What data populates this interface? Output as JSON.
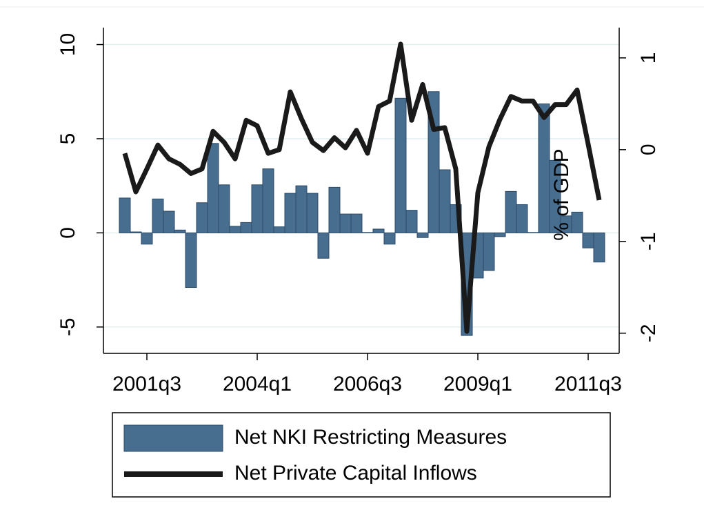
{
  "chart_data": {
    "type": "combo",
    "categories": [
      null,
      null,
      "2001q3",
      null,
      null,
      null,
      null,
      null,
      null,
      null,
      null,
      null,
      "2004q1",
      null,
      null,
      null,
      null,
      null,
      null,
      null,
      null,
      null,
      "2006q3",
      null,
      null,
      null,
      null,
      null,
      null,
      null,
      null,
      null,
      "2009q1",
      null,
      null,
      null,
      null,
      null,
      null,
      null,
      null,
      null,
      "2011q3",
      null
    ],
    "series": [
      {
        "name": "Net NKI Restricting Measures",
        "type": "bar",
        "color": "#476d8f",
        "axis": "y",
        "values": [
          1.85,
          0.05,
          -0.6,
          1.8,
          1.15,
          0.15,
          -2.9,
          1.6,
          4.75,
          2.55,
          0.35,
          0.55,
          2.55,
          3.4,
          0.32,
          2.1,
          2.5,
          2.1,
          -1.35,
          2.42,
          1.0,
          1.0,
          0.02,
          0.2,
          -0.6,
          7.15,
          1.2,
          -0.25,
          7.5,
          3.35,
          1.5,
          -5.45,
          -2.4,
          -2.0,
          -0.2,
          2.2,
          1.5,
          0.02,
          6.85,
          3.85,
          0.9,
          1.1,
          -0.8,
          -1.55
        ]
      },
      {
        "name": "Net Private Capital Inflows",
        "type": "line",
        "color": "#1a1a1a",
        "axis": "y2",
        "values": [
          -0.04,
          -0.46,
          -0.21,
          0.05,
          -0.1,
          -0.16,
          -0.26,
          -0.21,
          0.2,
          0.08,
          -0.1,
          0.32,
          0.26,
          -0.04,
          0,
          0.63,
          0.34,
          0.08,
          -0.01,
          0.13,
          0.02,
          0.21,
          -0.04,
          0.47,
          0.53,
          1.15,
          0.32,
          0.71,
          0.22,
          0.24,
          -0.21,
          -1.98,
          -0.47,
          0.03,
          0.33,
          0.58,
          0.53,
          0.53,
          0.35,
          0.49,
          0.49,
          0.65,
          0.06,
          -0.55
        ]
      }
    ],
    "ylim": [
      -6.4,
      10.9
    ],
    "yticks": [
      -5,
      0,
      5,
      10
    ],
    "y2lim": [
      -2.22,
      1.33
    ],
    "y2ticks": [
      -2,
      -1,
      0,
      1
    ],
    "y2_label": "% of GDP",
    "grid": true,
    "legend": "bottom"
  }
}
